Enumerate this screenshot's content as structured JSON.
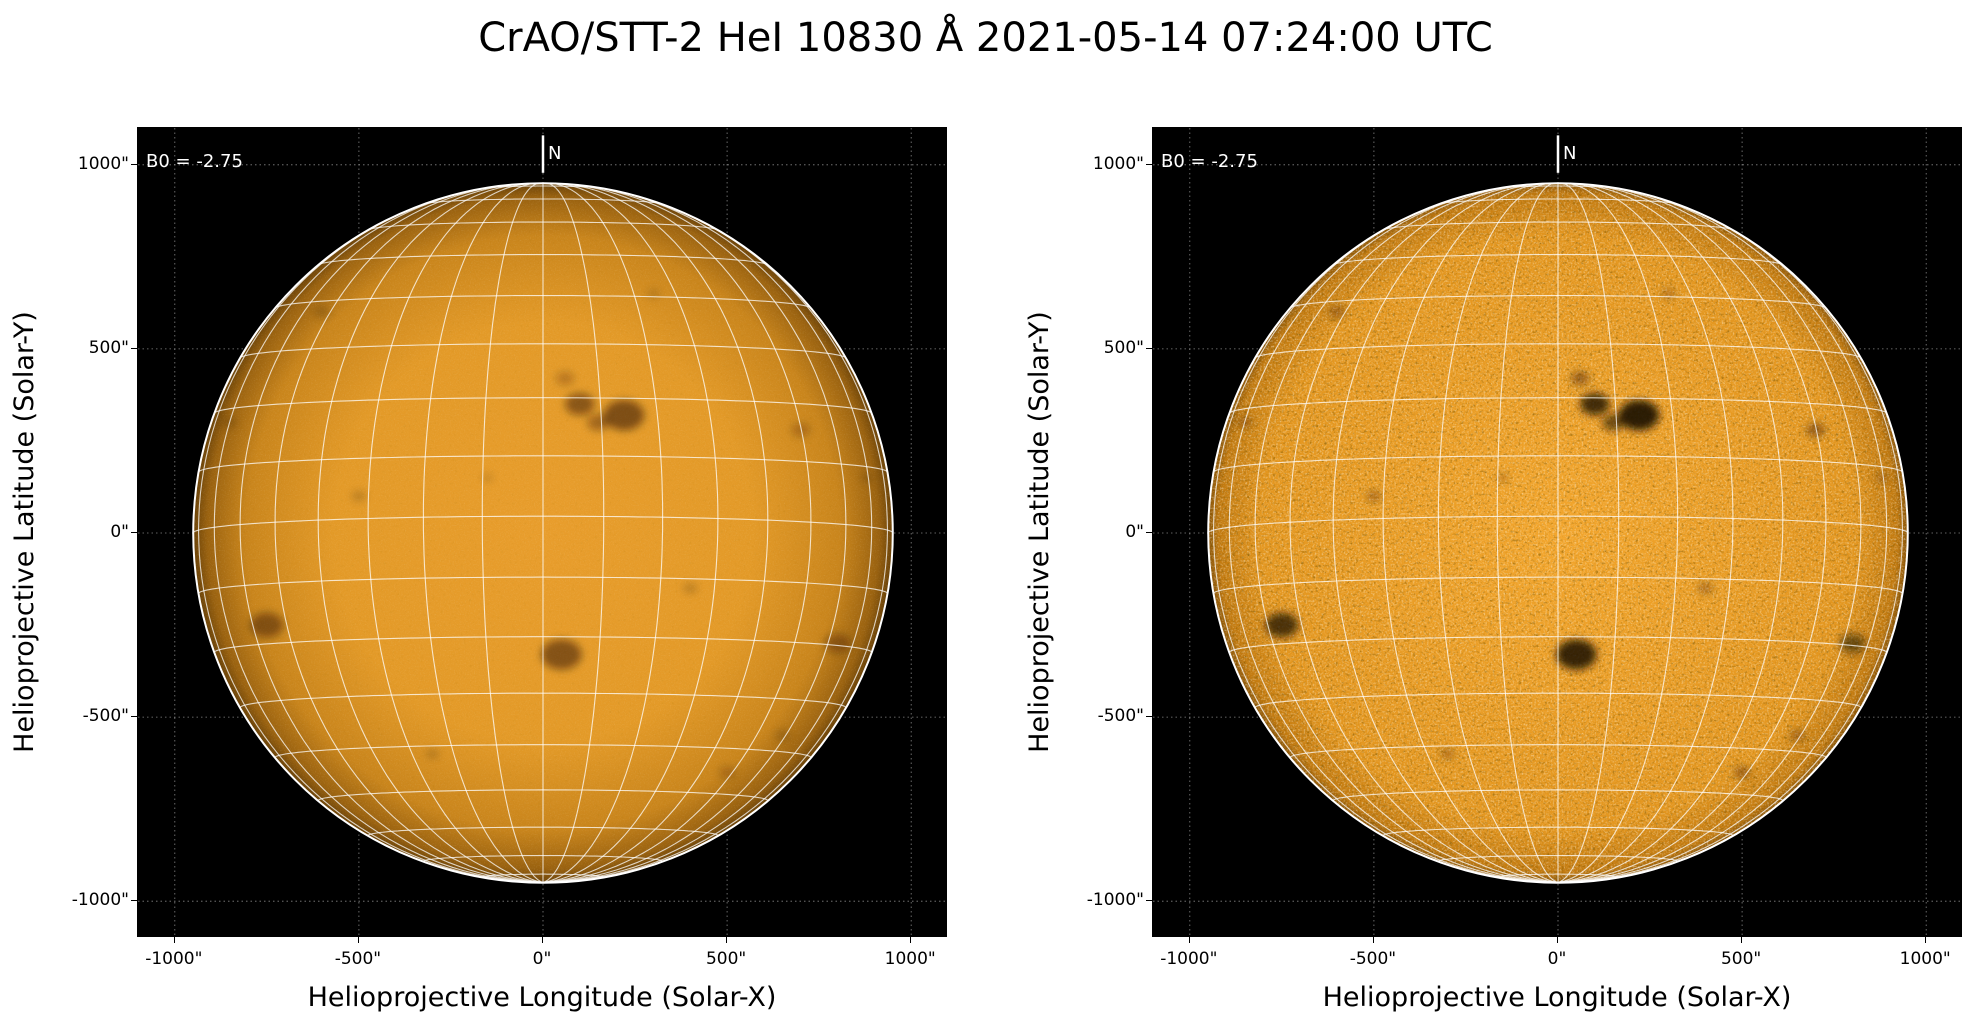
{
  "title": "CrAO/STT-2 HeI 10830 Å 2021-05-14 07:24:00 UTC",
  "colors": {
    "background": "#000000",
    "disk_center": "#e89d2c",
    "disk_limb": "#6a4208",
    "grid_line": "#ffffff",
    "limb_line": "#ffffff"
  },
  "panels": [
    {
      "name": "original",
      "b0_text": "B0 = -2.75",
      "north_text": "N",
      "xlabel": "Helioprojective Longitude (Solar-X)",
      "ylabel": "Helioprojective Latitude (Solar-Y)",
      "xticks": [
        "-1000\"",
        "-500\"",
        "0\"",
        "500\"",
        "1000\""
      ],
      "yticks": [
        "1000\"",
        "500\"",
        "0\"",
        "-500\"",
        "-1000\""
      ],
      "contrast": "low"
    },
    {
      "name": "enhanced",
      "b0_text": "B0 = -2.75",
      "north_text": "N",
      "xlabel": "Helioprojective Longitude (Solar-X)",
      "ylabel": "Helioprojective Latitude (Solar-Y)",
      "xticks": [
        "-1000\"",
        "-500\"",
        "0\"",
        "500\"",
        "1000\""
      ],
      "yticks": [
        "1000\"",
        "500\"",
        "0\"",
        "-500\"",
        "-1000\""
      ],
      "contrast": "high"
    }
  ],
  "axis": {
    "xlim": [
      -1100,
      1100
    ],
    "ylim": [
      -1100,
      1100
    ],
    "tick_values": [
      -1000,
      -500,
      0,
      500,
      1000
    ],
    "solar_radius_arcsec": 950,
    "b0_degrees": -2.75,
    "grid_step_degrees": 10
  },
  "features": [
    {
      "x": 100,
      "y": 350,
      "r": 40,
      "strength": 0.8
    },
    {
      "x": 220,
      "y": 320,
      "r": 55,
      "strength": 0.9
    },
    {
      "x": 150,
      "y": 300,
      "r": 30,
      "strength": 0.6
    },
    {
      "x": 60,
      "y": 420,
      "r": 25,
      "strength": 0.4
    },
    {
      "x": 50,
      "y": -330,
      "r": 55,
      "strength": 0.85
    },
    {
      "x": -750,
      "y": -250,
      "r": 45,
      "strength": 0.75
    },
    {
      "x": 800,
      "y": -300,
      "r": 35,
      "strength": 0.55
    },
    {
      "x": 700,
      "y": 280,
      "r": 25,
      "strength": 0.4
    },
    {
      "x": -500,
      "y": 100,
      "r": 20,
      "strength": 0.3
    },
    {
      "x": 400,
      "y": -150,
      "r": 20,
      "strength": 0.3
    },
    {
      "x": -300,
      "y": -600,
      "r": 18,
      "strength": 0.3
    },
    {
      "x": 500,
      "y": -650,
      "r": 22,
      "strength": 0.35
    },
    {
      "x": -600,
      "y": 600,
      "r": 22,
      "strength": 0.3
    },
    {
      "x": 300,
      "y": 650,
      "r": 18,
      "strength": 0.25
    },
    {
      "x": -150,
      "y": 150,
      "r": 15,
      "strength": 0.25
    },
    {
      "x": 650,
      "y": -550,
      "r": 20,
      "strength": 0.3
    },
    {
      "x": -850,
      "y": 300,
      "r": 18,
      "strength": 0.3
    },
    {
      "x": 880,
      "y": 150,
      "r": 15,
      "strength": 0.3
    }
  ]
}
